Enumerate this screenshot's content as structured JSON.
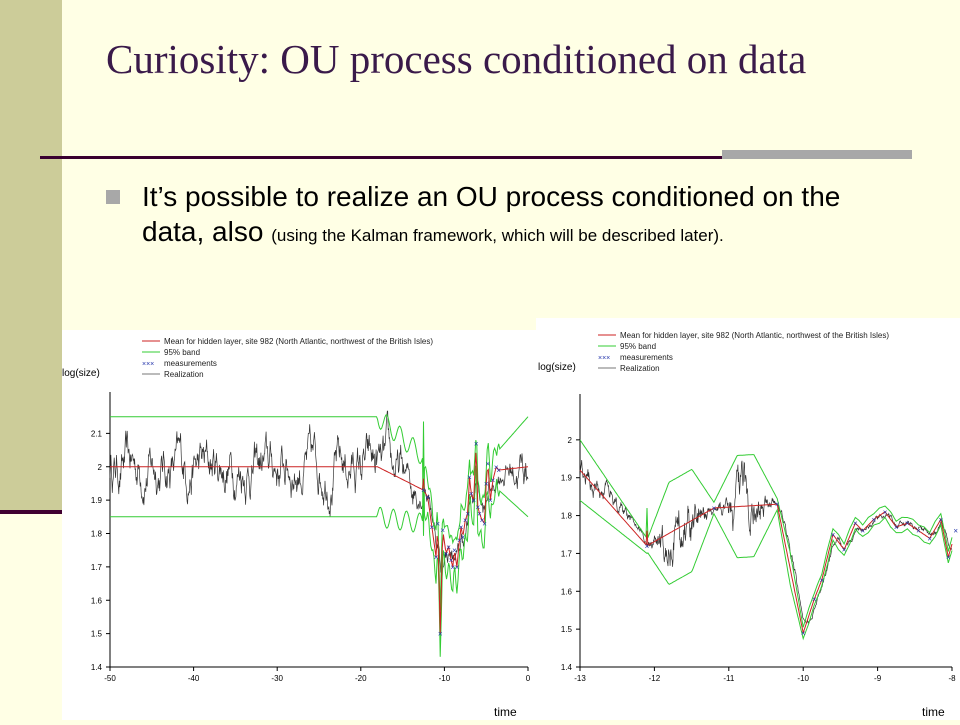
{
  "slide": {
    "title": "Curiosity: OU process conditioned on data",
    "bullet_main": "It’s possible to realize an OU process conditioned on the data, also ",
    "bullet_small": "(using the Kalman framework, which will be described later)."
  },
  "colors": {
    "mean": "#cc2222",
    "band": "#33cc33",
    "measure": "#2233aa",
    "real": "#000000"
  },
  "chart_data": [
    {
      "type": "line",
      "legend": [
        "Mean for hidden layer, site 982 (North Atlantic, northwest of the British Isles)",
        "95% band",
        "measurements",
        "Realization"
      ],
      "ylabel": "log(size)",
      "xlabel": "time",
      "xlim": [
        -50,
        0
      ],
      "ylim": [
        1.4,
        2.2
      ],
      "xticks": [
        -50,
        -40,
        -30,
        -20,
        -10,
        0
      ],
      "yticks": [
        1.4,
        1.5,
        1.6,
        1.7,
        1.8,
        1.9,
        2,
        2.1
      ],
      "measurements": [
        [
          -12.5,
          1.93
        ],
        [
          -12,
          1.91
        ],
        [
          -11.5,
          1.82
        ],
        [
          -11,
          1.73
        ],
        [
          -10.8,
          1.83
        ],
        [
          -10.5,
          1.5
        ],
        [
          -10.2,
          1.81
        ],
        [
          -9.8,
          1.74
        ],
        [
          -9.5,
          1.76
        ],
        [
          -9.2,
          1.72
        ],
        [
          -9,
          1.7
        ],
        [
          -8.8,
          1.75
        ],
        [
          -8.5,
          1.7
        ],
        [
          -8.2,
          1.78
        ],
        [
          -8,
          1.82
        ],
        [
          -7.8,
          1.79
        ],
        [
          -7.5,
          1.84
        ],
        [
          -7.2,
          1.86
        ],
        [
          -7,
          1.97
        ],
        [
          -6.8,
          1.92
        ],
        [
          -6.5,
          1.9
        ],
        [
          -6.2,
          2.07
        ],
        [
          -6,
          1.88
        ],
        [
          -5.8,
          1.86
        ],
        [
          -5.5,
          1.84
        ],
        [
          -5.2,
          1.83
        ],
        [
          -5,
          1.95
        ],
        [
          -4.8,
          2.01
        ],
        [
          -4.5,
          1.9
        ],
        [
          -4.2,
          1.96
        ],
        [
          -3.8,
          2.0
        ],
        [
          -3.5,
          1.99
        ]
      ]
    },
    {
      "type": "line",
      "legend": [
        "Mean for hidden layer, site 982 (North Atlantic, northwest of the British Isles)",
        "95% band",
        "measurements",
        "Realization"
      ],
      "ylabel": "log(size)",
      "xlabel": "time",
      "xlim": [
        -13,
        -8
      ],
      "ylim": [
        1.4,
        2.1
      ],
      "xticks": [
        -13,
        -12,
        -11,
        -10,
        -9,
        -8
      ],
      "yticks": [
        1.4,
        1.5,
        1.6,
        1.7,
        1.8,
        1.9,
        2
      ],
      "measurements": [
        [
          -12.1,
          1.72
        ],
        [
          -11.2,
          1.82
        ],
        [
          -10.35,
          1.83
        ],
        [
          -10.0,
          1.49
        ],
        [
          -9.85,
          1.58
        ],
        [
          -9.75,
          1.63
        ],
        [
          -9.6,
          1.75
        ],
        [
          -9.45,
          1.71
        ],
        [
          -9.3,
          1.78
        ],
        [
          -9.2,
          1.76
        ],
        [
          -9.05,
          1.79
        ],
        [
          -8.9,
          1.81
        ],
        [
          -8.75,
          1.77
        ],
        [
          -8.6,
          1.78
        ],
        [
          -8.45,
          1.76
        ],
        [
          -8.3,
          1.74
        ],
        [
          -8.15,
          1.79
        ],
        [
          -8.05,
          1.69
        ],
        [
          -7.95,
          1.76
        ]
      ]
    }
  ]
}
